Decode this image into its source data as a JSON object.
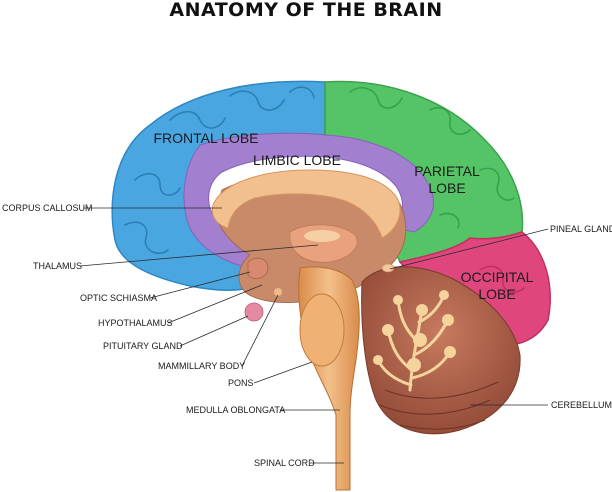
{
  "title": "ANATOMY OF THE BRAIN",
  "regions": {
    "frontal": "FRONTAL LOBE",
    "limbic": "LIMBIC LOBE",
    "parietal_1": "PARIETAL",
    "parietal_2": "LOBE",
    "occipital_1": "OCCIPITAL",
    "occipital_2": "LOBE"
  },
  "labels": {
    "corpus_callosum": "CORPUS CALLOSUM",
    "thalamus": "THALAMUS",
    "optic_schiasma": "OPTIC SCHIASMA",
    "hypothalamus": "HYPOTHALAMUS",
    "pituitary_gland": "PITUITARY GLAND",
    "mammillary_body": "MAMMILLARY BODY",
    "pons": "PONS",
    "medulla_oblongata": "MEDULLA OBLONGATA",
    "spinal_cord": "SPINAL CORD",
    "pineal_gland": "PINEAL GLAND",
    "cerebellum": "CEREBELLUM"
  },
  "colors": {
    "frontal": "#4aa6e0",
    "limbic": "#a37fd0",
    "parietal": "#55c467",
    "occipital": "#e0467e",
    "tissue": "#c98a69",
    "corpus": "#f2c08f",
    "stem": "#e4a063",
    "cerebellum": "#a0553e"
  }
}
